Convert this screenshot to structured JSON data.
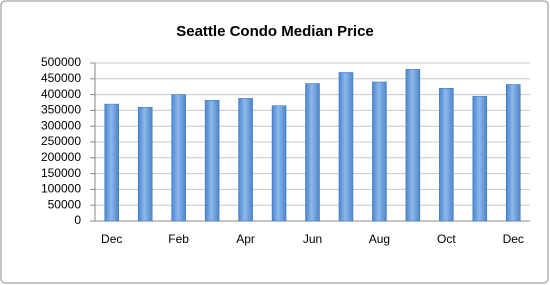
{
  "chart_data": {
    "type": "bar",
    "title": "Seattle Condo Median Price",
    "categories": [
      "Dec",
      null,
      "Feb",
      null,
      "Apr",
      null,
      "Jun",
      null,
      "Aug",
      null,
      "Oct",
      null,
      "Dec"
    ],
    "values": [
      370000,
      360000,
      400000,
      382000,
      388000,
      365000,
      435000,
      470000,
      440000,
      480000,
      420000,
      395000,
      432000
    ],
    "color": "#4a86cf",
    "ylim": [
      0,
      500000
    ],
    "yticks": [
      0,
      50000,
      100000,
      150000,
      200000,
      250000,
      300000,
      350000,
      400000,
      450000,
      500000
    ],
    "grid": true
  }
}
